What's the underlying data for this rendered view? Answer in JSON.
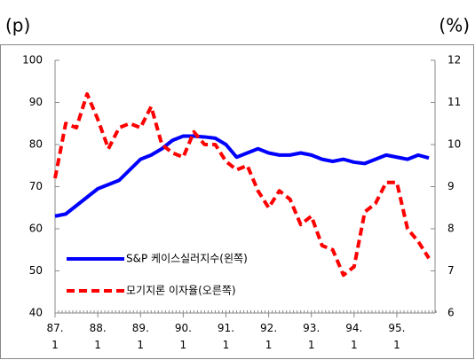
{
  "chart_data": {
    "type": "line",
    "y_label": "(p)",
    "y2_label": "(%)",
    "categories": [
      "87.\n1",
      null,
      null,
      null,
      "88.\n1",
      null,
      null,
      null,
      "89.\n1",
      null,
      null,
      null,
      "90.\n1",
      null,
      null,
      null,
      "91.\n1",
      null,
      null,
      null,
      "92.\n1",
      null,
      null,
      null,
      "93.\n1",
      null,
      null,
      null,
      "94.\n1",
      null,
      null,
      null,
      "95.\n1",
      null,
      null,
      null
    ],
    "series": [
      {
        "name": "S&P 케이스실러지수(왼쪽)",
        "color": "#0000ff",
        "style": "solid",
        "values": [
          63,
          63.5,
          65.5,
          67.5,
          69.5,
          70.5,
          71.5,
          74,
          76.5,
          77.5,
          79,
          81,
          82,
          82,
          81.8,
          81.5,
          80,
          77,
          78,
          79,
          78,
          77.5,
          77.5,
          78,
          77.5,
          76.5,
          76,
          76.5,
          75.8,
          75.5,
          76.5,
          77.5,
          77,
          76.5,
          77.5,
          76.8
        ]
      },
      {
        "name": "모기지론 이자율(오른쪽)",
        "color": "#ff0000",
        "style": "dashed",
        "axis": "y2",
        "values": [
          9.2,
          10.5,
          10.4,
          11.2,
          10.6,
          9.9,
          10.4,
          10.5,
          10.4,
          10.9,
          10.0,
          9.8,
          9.7,
          10.3,
          10.0,
          10.0,
          9.6,
          9.4,
          9.5,
          8.9,
          8.5,
          8.9,
          8.7,
          8.1,
          8.3,
          7.6,
          7.5,
          6.9,
          7.1,
          8.4,
          8.6,
          9.1,
          9.1,
          8.0,
          7.7,
          7.3
        ]
      }
    ],
    "ylim": [
      40,
      100
    ],
    "yticks": [
      40,
      50,
      60,
      70,
      80,
      90,
      100
    ],
    "y2lim": [
      6,
      12
    ],
    "y2ticks": [
      6,
      7,
      8,
      9,
      10,
      11,
      12
    ],
    "legend": "lower left"
  }
}
